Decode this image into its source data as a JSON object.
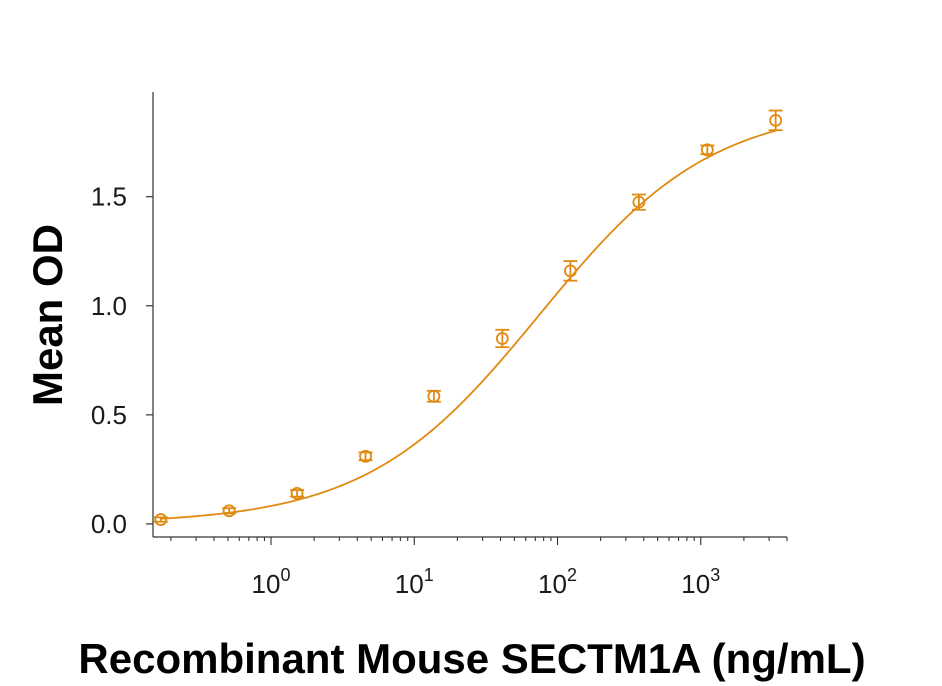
{
  "chart_data": {
    "type": "scatter",
    "title": "",
    "xlabel": "Recombinant Mouse SECTM1A (ng/mL)",
    "ylabel": "Mean OD",
    "x_scale": "log",
    "xlim": [
      0.15,
      4000
    ],
    "ylim": [
      -0.06,
      1.98
    ],
    "x_ticks": [
      {
        "value": 1,
        "base": "10",
        "exp": "0"
      },
      {
        "value": 10,
        "base": "10",
        "exp": "1"
      },
      {
        "value": 100,
        "base": "10",
        "exp": "2"
      },
      {
        "value": 1000,
        "base": "10",
        "exp": "3"
      }
    ],
    "y_ticks": [
      {
        "value": 0.0,
        "label": "0.0"
      },
      {
        "value": 0.5,
        "label": "0.5"
      },
      {
        "value": 1.0,
        "label": "1.0"
      },
      {
        "value": 1.5,
        "label": "1.5"
      }
    ],
    "grid": false,
    "legend": "none",
    "color": "#E08A10",
    "series": [
      {
        "x": [
          0.17,
          0.51,
          1.52,
          4.57,
          13.7,
          41.2,
          123,
          370,
          1111,
          3333
        ],
        "y": [
          0.02,
          0.06,
          0.14,
          0.31,
          0.585,
          0.85,
          1.16,
          1.475,
          1.715,
          1.85
        ],
        "err": [
          0.01,
          0.012,
          0.015,
          0.018,
          0.025,
          0.04,
          0.045,
          0.035,
          0.02,
          0.045
        ],
        "fit": "4PL"
      }
    ]
  }
}
